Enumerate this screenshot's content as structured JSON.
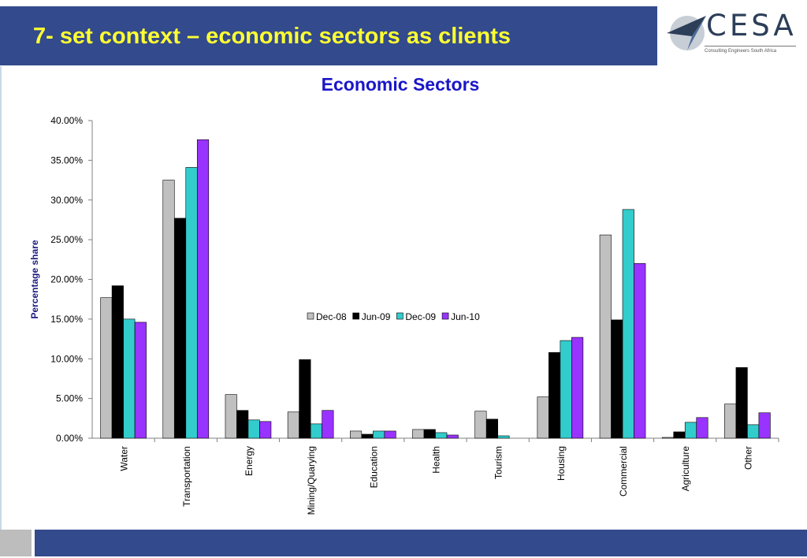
{
  "slide": {
    "title": "7- set context – economic sectors as clients"
  },
  "logo": {
    "name": "CESA",
    "tagline": "Consulting Engineers South Africa"
  },
  "chart_data": {
    "type": "bar",
    "title": "Economic Sectors",
    "xlabel": "",
    "ylabel": "Percentage share",
    "ylim": [
      0,
      0.4
    ],
    "y_ticks": [
      "0.00%",
      "5.00%",
      "10.00%",
      "15.00%",
      "20.00%",
      "25.00%",
      "30.00%",
      "35.00%",
      "40.00%"
    ],
    "grid": false,
    "legend_position": "center",
    "categories": [
      "Water",
      "Transportation",
      "Energy",
      "Mining/Quarying",
      "Education",
      "Health",
      "Tourism",
      "Housing",
      "Commercial",
      "Agriculture",
      "Other"
    ],
    "series": [
      {
        "name": "Dec-08",
        "color": "#c0c0c0",
        "values": [
          0.177,
          0.325,
          0.055,
          0.033,
          0.009,
          0.011,
          0.034,
          0.052,
          0.256,
          0.001,
          0.043
        ]
      },
      {
        "name": "Jun-09",
        "color": "#000000",
        "values": [
          0.192,
          0.277,
          0.035,
          0.099,
          0.005,
          0.011,
          0.024,
          0.108,
          0.149,
          0.008,
          0.089
        ]
      },
      {
        "name": "Dec-09",
        "color": "#33cccc",
        "values": [
          0.15,
          0.341,
          0.023,
          0.018,
          0.009,
          0.007,
          0.003,
          0.123,
          0.288,
          0.02,
          0.017
        ]
      },
      {
        "name": "Jun-10",
        "color": "#9933ff",
        "values": [
          0.146,
          0.376,
          0.021,
          0.035,
          0.009,
          0.004,
          0.0,
          0.127,
          0.22,
          0.026,
          0.032
        ]
      }
    ]
  }
}
